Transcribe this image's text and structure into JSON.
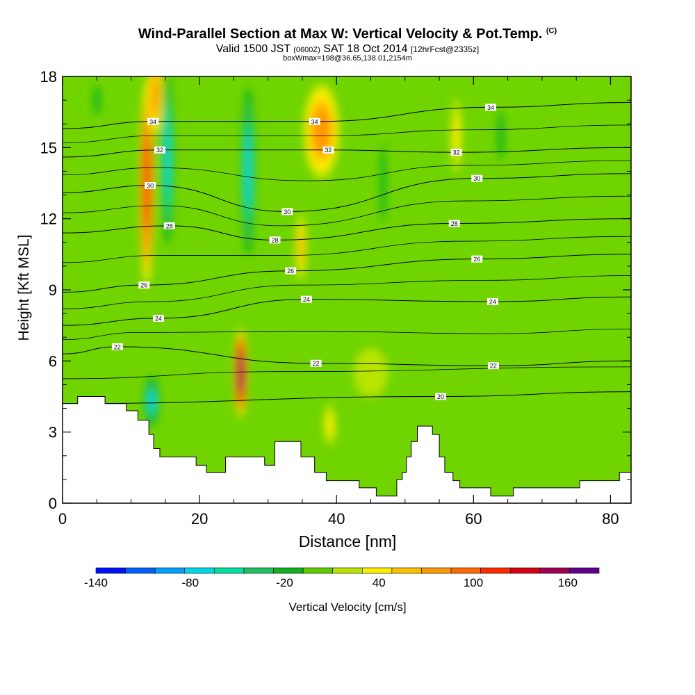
{
  "title": "Wind-Parallel Section at Max W: Vertical Velocity & Pot.Temp.",
  "copyright": "(C)",
  "subtitle": {
    "valid": "Valid 1500 JST",
    "zulu": "(0600Z)",
    "date": "SAT 18 Oct 2014",
    "forecast": "[12hrFcst@2335z]"
  },
  "subtitle2": "boxWmax=198@36.65,138.01,2154m",
  "chart_data": {
    "type": "heatmap",
    "xlabel": "Distance [nm]",
    "ylabel": "Height [Kft MSL]",
    "xlim": [
      0,
      83
    ],
    "ylim": [
      0,
      18
    ],
    "x_ticks": [
      0,
      20,
      40,
      60,
      80
    ],
    "y_ticks": [
      0,
      3,
      6,
      9,
      12,
      15,
      18
    ],
    "grid": false,
    "background_color": "#70d400",
    "colorbar": {
      "label": "Vertical Velocity [cm/s]",
      "tick_labels": [
        "-140",
        "-80",
        "-20",
        "40",
        "100",
        "160"
      ],
      "tick_values": [
        -140,
        -80,
        -20,
        40,
        100,
        160
      ],
      "range": [
        -140,
        180
      ],
      "colors": [
        "#0010ff",
        "#0060ff",
        "#00a0ff",
        "#00d8e8",
        "#00e0a0",
        "#20c060",
        "#10b020",
        "#60cc00",
        "#b8e400",
        "#ffee00",
        "#ffc000",
        "#ff9800",
        "#ff6a00",
        "#ff2800",
        "#d80010",
        "#a00050",
        "#600090"
      ]
    },
    "terrain": [
      {
        "x": 0,
        "h": 4.2
      },
      {
        "x": 2.2,
        "h": 4.2
      },
      {
        "x": 2.2,
        "h": 4.5
      },
      {
        "x": 6.2,
        "h": 4.5
      },
      {
        "x": 6.2,
        "h": 4.2
      },
      {
        "x": 9.3,
        "h": 4.2
      },
      {
        "x": 9.3,
        "h": 3.9
      },
      {
        "x": 11,
        "h": 3.9
      },
      {
        "x": 11,
        "h": 3.5
      },
      {
        "x": 12.6,
        "h": 3.5
      },
      {
        "x": 12.6,
        "h": 2.9
      },
      {
        "x": 13.3,
        "h": 2.9
      },
      {
        "x": 13.3,
        "h": 2.3
      },
      {
        "x": 14.2,
        "h": 2.3
      },
      {
        "x": 14.2,
        "h": 1.95
      },
      {
        "x": 19.5,
        "h": 1.95
      },
      {
        "x": 19.5,
        "h": 1.6
      },
      {
        "x": 21,
        "h": 1.6
      },
      {
        "x": 21,
        "h": 1.3
      },
      {
        "x": 23.8,
        "h": 1.3
      },
      {
        "x": 23.8,
        "h": 1.95
      },
      {
        "x": 29.5,
        "h": 1.95
      },
      {
        "x": 29.5,
        "h": 1.6
      },
      {
        "x": 31,
        "h": 1.6
      },
      {
        "x": 31,
        "h": 2.6
      },
      {
        "x": 34.8,
        "h": 2.6
      },
      {
        "x": 34.8,
        "h": 1.95
      },
      {
        "x": 36.8,
        "h": 1.95
      },
      {
        "x": 36.8,
        "h": 1.3
      },
      {
        "x": 38.5,
        "h": 1.3
      },
      {
        "x": 38.5,
        "h": 0.95
      },
      {
        "x": 43.3,
        "h": 0.95
      },
      {
        "x": 43.3,
        "h": 0.65
      },
      {
        "x": 45.8,
        "h": 0.65
      },
      {
        "x": 45.8,
        "h": 0.3
      },
      {
        "x": 48.8,
        "h": 0.3
      },
      {
        "x": 48.8,
        "h": 1.0
      },
      {
        "x": 49.6,
        "h": 1.0
      },
      {
        "x": 49.6,
        "h": 1.3
      },
      {
        "x": 50.2,
        "h": 1.3
      },
      {
        "x": 50.2,
        "h": 1.95
      },
      {
        "x": 50.9,
        "h": 1.95
      },
      {
        "x": 50.9,
        "h": 2.6
      },
      {
        "x": 51.8,
        "h": 2.6
      },
      {
        "x": 51.8,
        "h": 3.25
      },
      {
        "x": 54,
        "h": 3.25
      },
      {
        "x": 54,
        "h": 2.9
      },
      {
        "x": 55,
        "h": 2.9
      },
      {
        "x": 55,
        "h": 1.95
      },
      {
        "x": 55.8,
        "h": 1.95
      },
      {
        "x": 55.8,
        "h": 1.3
      },
      {
        "x": 57,
        "h": 1.3
      },
      {
        "x": 57,
        "h": 0.95
      },
      {
        "x": 58,
        "h": 0.95
      },
      {
        "x": 58,
        "h": 0.65
      },
      {
        "x": 62.5,
        "h": 0.65
      },
      {
        "x": 62.5,
        "h": 0.3
      },
      {
        "x": 65.8,
        "h": 0.3
      },
      {
        "x": 65.8,
        "h": 0.65
      },
      {
        "x": 75.5,
        "h": 0.65
      },
      {
        "x": 75.5,
        "h": 0.95
      },
      {
        "x": 81.3,
        "h": 0.95
      },
      {
        "x": 81.3,
        "h": 1.3
      },
      {
        "x": 83,
        "h": 1.3
      }
    ],
    "w_features": [
      {
        "x": 12.3,
        "h": 13.5,
        "rx": 1.1,
        "rh": 4.8,
        "w": 115
      },
      {
        "x": 13.5,
        "h": 17.2,
        "rx": 1.3,
        "rh": 2.0,
        "w": 70
      },
      {
        "x": 15.3,
        "h": 14.5,
        "rx": 0.9,
        "rh": 4.0,
        "w": -75
      },
      {
        "x": 13.0,
        "h": 4.3,
        "rx": 1.2,
        "rh": 1.2,
        "w": -65
      },
      {
        "x": 26.0,
        "h": 5.5,
        "rx": 1.0,
        "rh": 2.0,
        "w": 160
      },
      {
        "x": 27.1,
        "h": 14.0,
        "rx": 1.0,
        "rh": 4.0,
        "w": -70
      },
      {
        "x": 37.8,
        "h": 15.7,
        "rx": 3.0,
        "rh": 2.3,
        "w": 75
      },
      {
        "x": 34.8,
        "h": 10.8,
        "rx": 1.0,
        "rh": 1.8,
        "w": 50
      },
      {
        "x": 39.0,
        "h": 3.3,
        "rx": 1.1,
        "rh": 1.1,
        "w": 45
      },
      {
        "x": 57.5,
        "h": 15.5,
        "rx": 1.0,
        "rh": 2.0,
        "w": 45
      },
      {
        "x": 5.0,
        "h": 17.0,
        "rx": 1.0,
        "rh": 1.5,
        "w": -15
      },
      {
        "x": 46.8,
        "h": 13.5,
        "rx": 0.9,
        "rh": 4.0,
        "w": -10
      },
      {
        "x": 64.0,
        "h": 15.5,
        "rx": 1.0,
        "rh": 2.5,
        "w": -20
      },
      {
        "x": 45.0,
        "h": 5.5,
        "rx": 6.0,
        "rh": 2.5,
        "w": 15
      }
    ],
    "isentropes": {
      "labels": [
        "20",
        "22",
        "24",
        "26",
        "28",
        "30",
        "32",
        "34"
      ],
      "label_points": [
        {
          "text": "34",
          "x": 13.2,
          "h": 16.1
        },
        {
          "text": "32",
          "x": 14.2,
          "h": 14.9
        },
        {
          "text": "30",
          "x": 12.8,
          "h": 13.4
        },
        {
          "text": "28",
          "x": 15.6,
          "h": 11.7
        },
        {
          "text": "26",
          "x": 11.9,
          "h": 9.2
        },
        {
          "text": "24",
          "x": 14.0,
          "h": 7.8
        },
        {
          "text": "22",
          "x": 8.0,
          "h": 6.6
        },
        {
          "text": "34",
          "x": 36.8,
          "h": 16.1
        },
        {
          "text": "32",
          "x": 38.8,
          "h": 14.9
        },
        {
          "text": "30",
          "x": 32.8,
          "h": 12.3
        },
        {
          "text": "28",
          "x": 31.0,
          "h": 11.1
        },
        {
          "text": "26",
          "x": 33.3,
          "h": 9.8
        },
        {
          "text": "24",
          "x": 35.6,
          "h": 8.6
        },
        {
          "text": "22",
          "x": 37.0,
          "h": 5.9
        },
        {
          "text": "20",
          "x": 55.2,
          "h": 4.5
        },
        {
          "text": "34",
          "x": 62.5,
          "h": 16.7
        },
        {
          "text": "32",
          "x": 57.5,
          "h": 14.8
        },
        {
          "text": "30",
          "x": 60.5,
          "h": 13.7
        },
        {
          "text": "28",
          "x": 57.2,
          "h": 11.8
        },
        {
          "text": "26",
          "x": 60.5,
          "h": 10.3
        },
        {
          "text": "24",
          "x": 62.8,
          "h": 8.5
        },
        {
          "text": "22",
          "x": 62.9,
          "h": 5.8
        }
      ]
    }
  }
}
